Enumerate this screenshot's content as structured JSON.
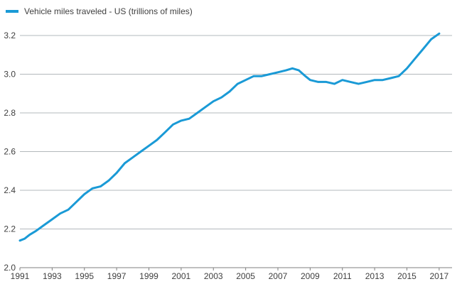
{
  "chart_data": {
    "type": "line",
    "title": "",
    "xlabel": "",
    "ylabel": "",
    "series": [
      {
        "name": "Vehicle miles traveled - US (trillions of miles)",
        "color": "#1a9ad6",
        "x": [
          1991.0,
          1991.3,
          1991.6,
          1992.0,
          1992.5,
          1993.0,
          1993.5,
          1994.0,
          1994.5,
          1995.0,
          1995.5,
          1996.0,
          1996.5,
          1997.0,
          1997.5,
          1998.0,
          1998.5,
          1999.0,
          1999.5,
          2000.0,
          2000.5,
          2001.0,
          2001.5,
          2002.0,
          2002.5,
          2003.0,
          2003.5,
          2004.0,
          2004.5,
          2005.0,
          2005.5,
          2006.0,
          2006.5,
          2007.0,
          2007.5,
          2007.9,
          2008.3,
          2008.7,
          2009.0,
          2009.5,
          2010.0,
          2010.5,
          2011.0,
          2011.5,
          2012.0,
          2012.5,
          2013.0,
          2013.5,
          2014.0,
          2014.5,
          2015.0,
          2015.5,
          2016.0,
          2016.5,
          2017.0
        ],
        "values": [
          2.14,
          2.15,
          2.17,
          2.19,
          2.22,
          2.25,
          2.28,
          2.3,
          2.34,
          2.38,
          2.41,
          2.42,
          2.45,
          2.49,
          2.54,
          2.57,
          2.6,
          2.63,
          2.66,
          2.7,
          2.74,
          2.76,
          2.77,
          2.8,
          2.83,
          2.86,
          2.88,
          2.91,
          2.95,
          2.97,
          2.99,
          2.99,
          3.0,
          3.01,
          3.02,
          3.03,
          3.02,
          2.99,
          2.97,
          2.96,
          2.96,
          2.95,
          2.97,
          2.96,
          2.95,
          2.96,
          2.97,
          2.97,
          2.98,
          2.99,
          3.03,
          3.08,
          3.13,
          3.18,
          3.21
        ]
      }
    ],
    "x_ticks": [
      "1991",
      "1993",
      "1995",
      "1997",
      "1999",
      "2001",
      "2003",
      "2005",
      "2007",
      "2009",
      "2011",
      "2013",
      "2015",
      "2017"
    ],
    "y_ticks": [
      "2.0",
      "2.2",
      "2.4",
      "2.6",
      "2.8",
      "3.0",
      "3.2"
    ],
    "xlim": [
      1991,
      2017.8
    ],
    "ylim": [
      2.0,
      3.2
    ],
    "grid": "horizontal",
    "legend_position": "top-left"
  }
}
